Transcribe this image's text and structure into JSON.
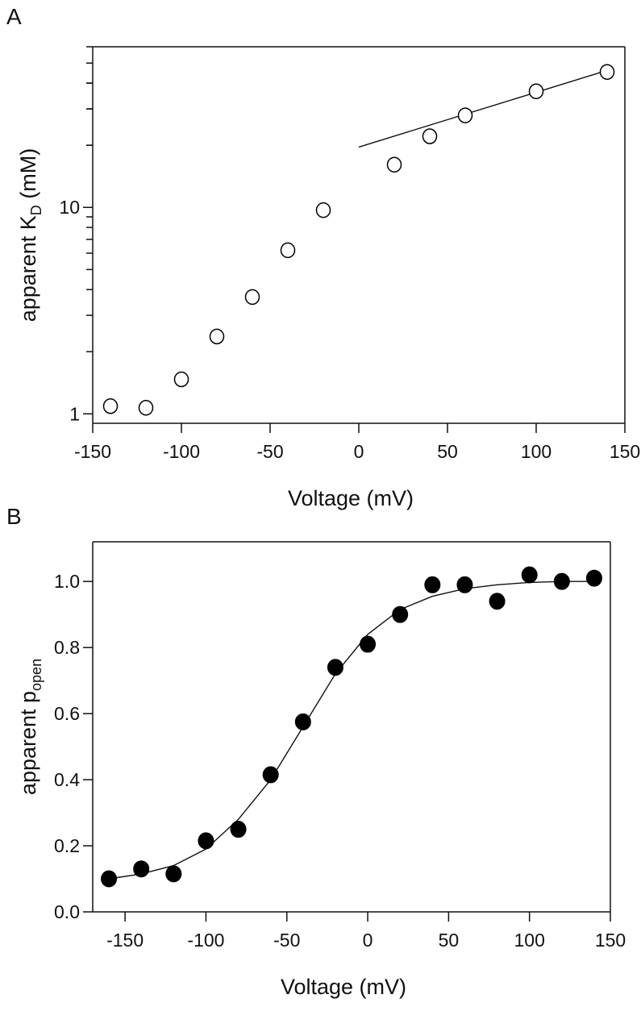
{
  "chart_data": [
    {
      "panel": "A",
      "type": "scatter",
      "xlabel": "Voltage (mV)",
      "ylabel": "apparent K",
      "ylabel_sub": "D",
      "ylabel_suffix": " (mM)",
      "yscale": "log",
      "xlim": [
        -150,
        150
      ],
      "ylim": [
        0.9,
        60
      ],
      "xticks": [
        -150,
        -100,
        -50,
        0,
        50,
        100,
        150
      ],
      "yticks": [
        1,
        10
      ],
      "grid": false,
      "marker": "open-circle",
      "x": [
        -140,
        -120,
        -100,
        -80,
        -60,
        -40,
        -20,
        20,
        40,
        60,
        100,
        140
      ],
      "y": [
        1.09,
        1.07,
        1.47,
        2.37,
        3.68,
        6.2,
        9.7,
        16.1,
        22.1,
        27.9,
        36.5,
        45.3
      ],
      "fit_line": {
        "x": [
          0,
          140
        ],
        "y": [
          19.6,
          46.1
        ]
      }
    },
    {
      "panel": "B",
      "type": "scatter",
      "xlabel": "Voltage (mV)",
      "ylabel": "apparent p",
      "ylabel_sub": "open",
      "ylabel_suffix": "",
      "yscale": "linear",
      "xlim": [
        -170,
        150
      ],
      "ylim": [
        0,
        1.12
      ],
      "xticks": [
        -150,
        -100,
        -50,
        0,
        50,
        100,
        150
      ],
      "yticks": [
        "0.0",
        "0.2",
        "0.4",
        "0.6",
        "0.8",
        "1.0"
      ],
      "grid": false,
      "marker": "filled-circle",
      "x": [
        -160,
        -140,
        -120,
        -100,
        -80,
        -60,
        -40,
        -20,
        0,
        20,
        40,
        60,
        80,
        100,
        120,
        140
      ],
      "y": [
        0.1,
        0.13,
        0.115,
        0.215,
        0.25,
        0.415,
        0.575,
        0.74,
        0.81,
        0.9,
        0.99,
        0.99,
        0.94,
        1.02,
        1.0,
        1.01
      ],
      "fit_curve": {
        "x": [
          -160,
          -140,
          -120,
          -100,
          -80,
          -60,
          -40,
          -20,
          0,
          20,
          40,
          60,
          80,
          100,
          120,
          140
        ],
        "y": [
          0.1,
          0.115,
          0.14,
          0.19,
          0.28,
          0.4,
          0.56,
          0.72,
          0.84,
          0.915,
          0.955,
          0.978,
          0.99,
          0.997,
          1.0,
          1.0
        ]
      }
    }
  ]
}
